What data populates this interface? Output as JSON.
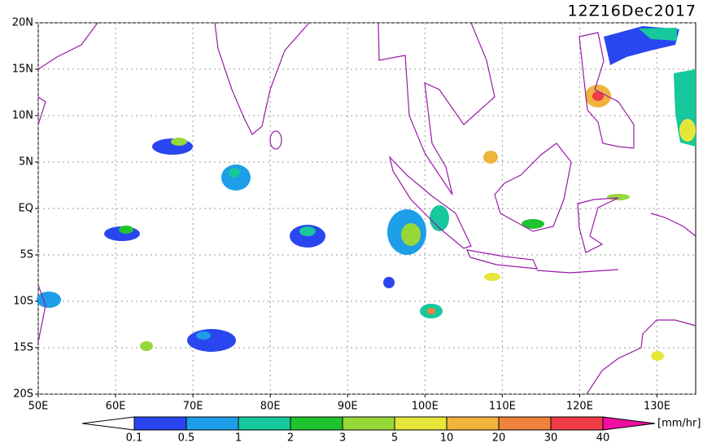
{
  "header": {
    "title": "12Z16Dec2017"
  },
  "map": {
    "lon_range": [
      50,
      135
    ],
    "lat_range": [
      -20,
      20
    ],
    "lat_ticks": [
      {
        "value": 20,
        "label": "20N"
      },
      {
        "value": 15,
        "label": "15N"
      },
      {
        "value": 10,
        "label": "10N"
      },
      {
        "value": 5,
        "label": "5N"
      },
      {
        "value": 0,
        "label": "EQ"
      },
      {
        "value": -5,
        "label": "5S"
      },
      {
        "value": -10,
        "label": "10S"
      },
      {
        "value": -15,
        "label": "15S"
      },
      {
        "value": -20,
        "label": "20S"
      }
    ],
    "lon_ticks": [
      {
        "value": 50,
        "label": "50E"
      },
      {
        "value": 60,
        "label": "60E"
      },
      {
        "value": 70,
        "label": "70E"
      },
      {
        "value": 80,
        "label": "80E"
      },
      {
        "value": 90,
        "label": "90E"
      },
      {
        "value": 100,
        "label": "100E"
      },
      {
        "value": 110,
        "label": "110E"
      },
      {
        "value": 120,
        "label": "120E"
      },
      {
        "value": 130,
        "label": "130E"
      }
    ]
  },
  "legend": {
    "levels": [
      0.1,
      0.5,
      1,
      2,
      3,
      5,
      10,
      20,
      30,
      40
    ],
    "colors": [
      "#ffffff",
      "#2a46f0",
      "#1e9ee8",
      "#16c89c",
      "#1ec42e",
      "#96d83a",
      "#e6e63a",
      "#f0b43c",
      "#f0823c",
      "#f03c46",
      "#f00ea0"
    ],
    "unit": "[mm/hr]"
  }
}
